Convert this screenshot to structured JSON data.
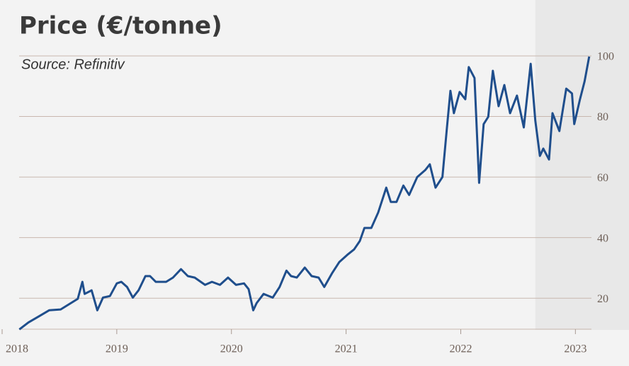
{
  "chart_data": {
    "type": "line",
    "title": "Price (€/tonne)",
    "subtitle": "Source: Refinitiv",
    "series": [
      {
        "name": "Price",
        "color": "#1f4e8c",
        "x": [
          2018.15,
          2018.23,
          2018.32,
          2018.41,
          2018.51,
          2018.6,
          2018.66,
          2018.7,
          2018.72,
          2018.78,
          2018.83,
          2018.88,
          2018.94,
          2019.0,
          2019.04,
          2019.09,
          2019.14,
          2019.19,
          2019.25,
          2019.29,
          2019.34,
          2019.43,
          2019.49,
          2019.56,
          2019.62,
          2019.68,
          2019.77,
          2019.83,
          2019.9,
          2019.97,
          2020.04,
          2020.11,
          2020.15,
          2020.19,
          2020.22,
          2020.28,
          2020.36,
          2020.42,
          2020.48,
          2020.52,
          2020.57,
          2020.64,
          2020.7,
          2020.76,
          2020.81,
          2020.88,
          2020.94,
          2021.01,
          2021.07,
          2021.12,
          2021.16,
          2021.22,
          2021.28,
          2021.35,
          2021.39,
          2021.44,
          2021.5,
          2021.55,
          2021.62,
          2021.69,
          2021.73,
          2021.78,
          2021.84,
          2021.88,
          2021.91,
          2021.94,
          2021.99,
          2022.04,
          2022.07,
          2022.12,
          2022.16,
          2022.2,
          2022.24,
          2022.28,
          2022.33,
          2022.38,
          2022.43,
          2022.49,
          2022.55,
          2022.61,
          2022.65,
          2022.69,
          2022.72,
          2022.77,
          2022.8,
          2022.86,
          2022.92,
          2022.97,
          2022.99,
          2023.04,
          2023.08,
          2023.12
        ],
        "values": [
          9.7,
          12,
          14,
          16,
          16.3,
          18.4,
          19.8,
          25.4,
          21.4,
          22.6,
          16,
          20.2,
          20.7,
          24.9,
          25.4,
          23.7,
          20.2,
          22.6,
          27.3,
          27.3,
          25.4,
          25.4,
          26.8,
          29.6,
          27.3,
          26.8,
          24.4,
          25.4,
          24.4,
          26.8,
          24.4,
          24.9,
          23,
          16,
          18.4,
          21.4,
          20.2,
          23.7,
          29.1,
          27.3,
          26.8,
          30.1,
          27.3,
          26.8,
          23.7,
          28.4,
          31.9,
          34.3,
          36.1,
          38.9,
          43.2,
          43.2,
          48.3,
          56.5,
          51.8,
          51.8,
          57.2,
          54.1,
          60,
          62.3,
          64.2,
          56.5,
          60,
          76.4,
          88.5,
          81.1,
          88.1,
          85.7,
          96.3,
          92.7,
          58.1,
          77.5,
          79.9,
          95.1,
          83.4,
          90.4,
          81.1,
          86.9,
          76.4,
          97.4,
          78.7,
          67,
          69.4,
          65.8,
          81.1,
          75.2,
          89.2,
          87.6,
          77.5,
          85.7,
          91.6,
          99.8
        ]
      }
    ],
    "xlim": [
      2018,
      2023.14
    ],
    "xticks": [
      2018,
      2019,
      2020,
      2021,
      2022,
      2023
    ],
    "ylim": [
      10,
      100
    ],
    "yticks": [
      20,
      40,
      60,
      80,
      100
    ],
    "grid": true,
    "shade_from": 2022.65
  }
}
